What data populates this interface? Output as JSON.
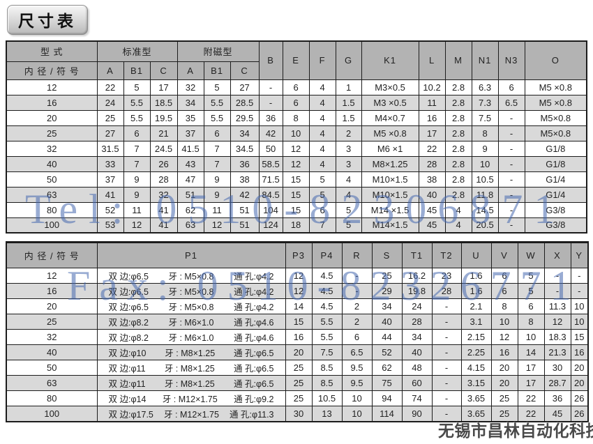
{
  "title": "尺寸表",
  "colors": {
    "header_bg": "#b3b3b3",
    "stripe_bg": "#d9d9d9",
    "border": "#1c1c1c",
    "ink": "#222222",
    "watermark_blue": "rgba(70,104,175,0.55)"
  },
  "watermarks": {
    "tel": "Tel: 0510-82306871",
    "fax": "Fax: 0510-82326771",
    "company": "无锡市昌林自动化科技"
  },
  "table1": {
    "header": {
      "model": "型 式",
      "bore": "内 径 / 符 号",
      "standard": "标准型",
      "magnetic": "附磁型",
      "sub": [
        "A",
        "B1",
        "C",
        "A",
        "B1",
        "C"
      ],
      "single": [
        "B",
        "E",
        "F",
        "G",
        "K1",
        "L",
        "M",
        "N1",
        "N3",
        "O"
      ]
    },
    "rows": [
      {
        "bore": "12",
        "cells": [
          "22",
          "5",
          "17",
          "32",
          "5",
          "27",
          "-",
          "6",
          "4",
          "1",
          "M3×0.5",
          "10.2",
          "2.8",
          "6.3",
          "6",
          "M5 ×0.8"
        ]
      },
      {
        "bore": "16",
        "cells": [
          "24",
          "5.5",
          "18.5",
          "34",
          "5.5",
          "28.5",
          "-",
          "6",
          "4",
          "1.5",
          "M3 ×0.5",
          "11",
          "2.8",
          "7.3",
          "6.5",
          "M5 ×0.8"
        ]
      },
      {
        "bore": "20",
        "cells": [
          "25",
          "5.5",
          "19.5",
          "35",
          "5.5",
          "29.5",
          "36",
          "8",
          "4",
          "1.5",
          "M4×0.7",
          "16",
          "2.8",
          "7.5",
          "-",
          "M5×0.8"
        ]
      },
      {
        "bore": "25",
        "cells": [
          "27",
          "6",
          "21",
          "37",
          "6",
          "34",
          "42",
          "10",
          "4",
          "2",
          "M5 ×0.8",
          "17",
          "2.8",
          "8",
          "-",
          "M5×0.8"
        ]
      },
      {
        "bore": "32",
        "cells": [
          "31.5",
          "7",
          "24.5",
          "41.5",
          "7",
          "34.5",
          "50",
          "12",
          "4",
          "3",
          "M6 ×1",
          "22",
          "2.8",
          "9",
          "-",
          "G1/8"
        ]
      },
      {
        "bore": "40",
        "cells": [
          "33",
          "7",
          "26",
          "43",
          "7",
          "36",
          "58.5",
          "12",
          "4",
          "3",
          "M8×1.25",
          "28",
          "2.8",
          "10",
          "-",
          "G1/8"
        ]
      },
      {
        "bore": "50",
        "cells": [
          "37",
          "9",
          "28",
          "47",
          "9",
          "38",
          "71.5",
          "15",
          "5",
          "4",
          "M10×1.5",
          "38",
          "2.8",
          "10.5",
          "-",
          "G1/4"
        ]
      },
      {
        "bore": "63",
        "cells": [
          "41",
          "9",
          "32",
          "51",
          "9",
          "42",
          "84.5",
          "15",
          "5",
          "4",
          "M10×1.5",
          "40",
          "2.8",
          "11.8",
          "-",
          "G1/4"
        ]
      },
      {
        "bore": "80",
        "cells": [
          "52",
          "11",
          "41",
          "62",
          "11",
          "51",
          "104",
          "15",
          "6",
          "5",
          "M14 ×1.5",
          "45",
          "4",
          "14.5",
          "-",
          "G3/8"
        ]
      },
      {
        "bore": "100",
        "cells": [
          "53",
          "12",
          "41",
          "63",
          "12",
          "51",
          "124",
          "18",
          "7",
          "5",
          "M14×1.5",
          "45",
          "4",
          "20.5",
          "-",
          "G3/8"
        ]
      }
    ]
  },
  "table2": {
    "header": {
      "bore": "内 径 / 符 号",
      "p1": "P1",
      "cols": [
        "P3",
        "P4",
        "R",
        "S",
        "T1",
        "T2",
        "U",
        "V",
        "W",
        "X",
        "Y"
      ]
    },
    "rows": [
      {
        "bore": "12",
        "p1": {
          "side": "双 边:φ6.5",
          "thread": "牙 : M5×0.8",
          "hole": "通 孔:φ4.2"
        },
        "cells": [
          "12",
          "4.5",
          "-",
          "25",
          "16.2",
          "23",
          "1.6",
          "6",
          "5",
          "-",
          "-"
        ]
      },
      {
        "bore": "16",
        "p1": {
          "side": "双 边:φ6.5",
          "thread": "牙 : M5×0.8",
          "hole": "通 孔:φ4.2"
        },
        "cells": [
          "12",
          "4.5",
          "-",
          "29",
          "19.8",
          "28",
          "1.6",
          "6",
          "5",
          "-",
          "-"
        ]
      },
      {
        "bore": "20",
        "p1": {
          "side": "双 边:φ6.5",
          "thread": "牙 : M5×0.8",
          "hole": "通 孔:φ4.2"
        },
        "cells": [
          "14",
          "4.5",
          "2",
          "34",
          "24",
          "-",
          "2.1",
          "8",
          "6",
          "11.3",
          "10"
        ]
      },
      {
        "bore": "25",
        "p1": {
          "side": "双 边:φ8.2",
          "thread": "牙 : M6×1.0",
          "hole": "通 孔:φ4.6"
        },
        "cells": [
          "15",
          "5.5",
          "2",
          "40",
          "28",
          "-",
          "3.1",
          "10",
          "8",
          "12",
          "10"
        ]
      },
      {
        "bore": "32",
        "p1": {
          "side": "双 边:φ8.2",
          "thread": "牙 : M6×1.0",
          "hole": "通 孔:φ4.6"
        },
        "cells": [
          "16",
          "5.5",
          "6",
          "44",
          "34",
          "-",
          "2.15",
          "12",
          "10",
          "18.3",
          "15"
        ]
      },
      {
        "bore": "40",
        "p1": {
          "side": "双 边:φ10",
          "thread": "牙 : M8×1.25",
          "hole": "通 孔:φ6.5"
        },
        "cells": [
          "20",
          "7.5",
          "6.5",
          "52",
          "40",
          "-",
          "2.25",
          "16",
          "14",
          "21.3",
          "16"
        ]
      },
      {
        "bore": "50",
        "p1": {
          "side": "双 边:φ11",
          "thread": "牙 : M8×1.25",
          "hole": "通 孔:φ6.5"
        },
        "cells": [
          "25",
          "8.5",
          "9.5",
          "62",
          "48",
          "-",
          "4.15",
          "20",
          "17",
          "30",
          "20"
        ]
      },
      {
        "bore": "63",
        "p1": {
          "side": "双 边:φ11",
          "thread": "牙 : M8×1.25",
          "hole": "通 孔:φ6.5"
        },
        "cells": [
          "25",
          "8.5",
          "9.5",
          "75",
          "60",
          "-",
          "3.15",
          "20",
          "17",
          "28.7",
          "20"
        ]
      },
      {
        "bore": "80",
        "p1": {
          "side": "双 边:φ14",
          "thread": "牙 : M12×1.75",
          "hole": "通 孔:φ9.2"
        },
        "cells": [
          "25",
          "10.5",
          "10",
          "94",
          "74",
          "-",
          "3.65",
          "25",
          "22",
          "36",
          "26"
        ]
      },
      {
        "bore": "100",
        "p1": {
          "side": "双 边:φ17.5",
          "thread": "牙 : M12×1.75",
          "hole": "通 孔:φ11.3"
        },
        "cells": [
          "30",
          "13",
          "10",
          "114",
          "90",
          "-",
          "3.65",
          "25",
          "22",
          "45",
          "26"
        ]
      }
    ]
  }
}
